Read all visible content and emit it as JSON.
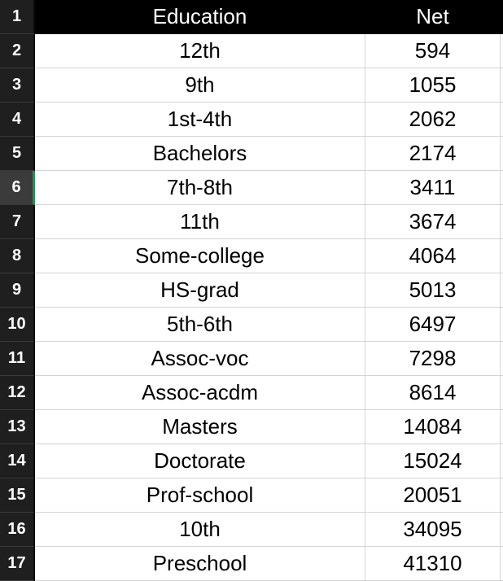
{
  "headers": {
    "row_number": "1",
    "education": "Education",
    "net": "Net"
  },
  "selected_row": "6",
  "rows": [
    {
      "row_number": "2",
      "education": "12th",
      "net": "594"
    },
    {
      "row_number": "3",
      "education": "9th",
      "net": "1055"
    },
    {
      "row_number": "4",
      "education": "1st-4th",
      "net": "2062"
    },
    {
      "row_number": "5",
      "education": "Bachelors",
      "net": "2174"
    },
    {
      "row_number": "6",
      "education": "7th-8th",
      "net": "3411"
    },
    {
      "row_number": "7",
      "education": "11th",
      "net": "3674"
    },
    {
      "row_number": "8",
      "education": "Some-college",
      "net": "4064"
    },
    {
      "row_number": "9",
      "education": "HS-grad",
      "net": "5013"
    },
    {
      "row_number": "10",
      "education": "5th-6th",
      "net": "6497"
    },
    {
      "row_number": "11",
      "education": "Assoc-voc",
      "net": "7298"
    },
    {
      "row_number": "12",
      "education": "Assoc-acdm",
      "net": "8614"
    },
    {
      "row_number": "13",
      "education": "Masters",
      "net": "14084"
    },
    {
      "row_number": "14",
      "education": "Doctorate",
      "net": "15024"
    },
    {
      "row_number": "15",
      "education": "Prof-school",
      "net": "20051"
    },
    {
      "row_number": "16",
      "education": "10th",
      "net": "34095"
    },
    {
      "row_number": "17",
      "education": "Preschool",
      "net": "41310"
    }
  ]
}
